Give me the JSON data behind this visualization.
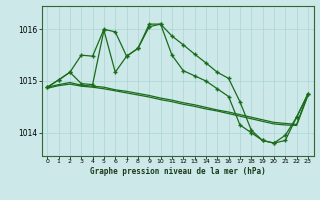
{
  "title": "Graphe pression niveau de la mer (hPa)",
  "background_color": "#cce8e8",
  "grid_color": "#aad4d4",
  "line_color": "#1a6b1a",
  "xlim": [
    -0.5,
    23.5
  ],
  "ylim": [
    1013.55,
    1016.45
  ],
  "yticks": [
    1014,
    1015,
    1016
  ],
  "xticks": [
    0,
    1,
    2,
    3,
    4,
    5,
    6,
    7,
    8,
    9,
    10,
    11,
    12,
    13,
    14,
    15,
    16,
    17,
    18,
    19,
    20,
    21,
    22,
    23
  ],
  "flat1_y": [
    1014.88,
    1014.93,
    1014.97,
    1014.92,
    1014.9,
    1014.88,
    1014.83,
    1014.8,
    1014.76,
    1014.72,
    1014.67,
    1014.63,
    1014.58,
    1014.54,
    1014.49,
    1014.44,
    1014.4,
    1014.35,
    1014.3,
    1014.25,
    1014.2,
    1014.18,
    1014.16,
    1014.74
  ],
  "flat2_y": [
    1014.86,
    1014.91,
    1014.94,
    1014.9,
    1014.88,
    1014.85,
    1014.81,
    1014.77,
    1014.73,
    1014.69,
    1014.64,
    1014.6,
    1014.55,
    1014.51,
    1014.46,
    1014.42,
    1014.37,
    1014.32,
    1014.27,
    1014.22,
    1014.17,
    1014.15,
    1014.14,
    1014.72
  ],
  "main1_x": [
    0,
    1,
    2,
    3,
    4,
    5,
    6,
    7,
    8,
    9,
    10,
    11,
    12,
    13,
    14,
    15,
    16,
    17,
    18,
    19,
    20,
    21,
    22,
    23
  ],
  "main1_y": [
    1014.88,
    1015.02,
    1015.17,
    1015.5,
    1015.48,
    1016.0,
    1015.95,
    1015.48,
    1015.63,
    1016.1,
    1016.1,
    1015.5,
    1015.2,
    1015.1,
    1015.0,
    1014.85,
    1014.7,
    1014.15,
    1014.0,
    1013.85,
    1013.8,
    1013.95,
    1014.3,
    1014.75
  ],
  "main2_x": [
    0,
    1,
    2,
    3,
    4,
    5,
    6,
    7,
    8,
    9,
    10,
    11,
    12,
    13,
    14,
    15,
    16,
    17,
    18,
    19,
    20,
    21,
    22,
    23
  ],
  "main2_y": [
    1014.88,
    1015.02,
    1015.17,
    1014.95,
    1014.93,
    1015.98,
    1015.17,
    1015.48,
    1015.63,
    1016.05,
    1016.1,
    1015.87,
    1015.7,
    1015.52,
    1015.35,
    1015.17,
    1015.05,
    1014.6,
    1014.05,
    1013.85,
    1013.8,
    1013.85,
    1014.3,
    1014.75
  ]
}
